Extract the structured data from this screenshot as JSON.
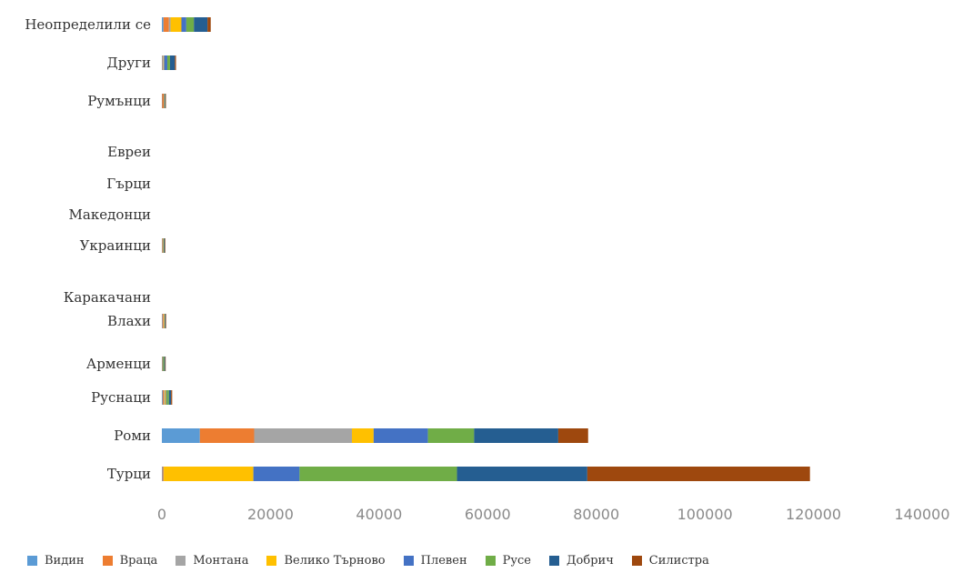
{
  "chart_data": {
    "type": "bar",
    "orientation": "horizontal",
    "stacked": true,
    "title": "",
    "xlabel": "",
    "ylabel": "",
    "xlim": [
      0,
      140000
    ],
    "x_ticks": [
      0,
      20000,
      40000,
      60000,
      80000,
      100000,
      120000,
      140000
    ],
    "grid": false,
    "legend_position": "bottom",
    "categories": [
      "Неопределили се",
      "Други",
      "Румънци",
      "Евреи",
      "Гърци",
      "Македонци",
      "Украинци",
      "Каракачани",
      "Влахи",
      "Арменци",
      "Руснаци",
      "Роми",
      "Турци"
    ],
    "series": [
      {
        "name": "Видин",
        "color": "#5b9bd5",
        "values": [
          300,
          100,
          50,
          0,
          0,
          0,
          50,
          0,
          100,
          50,
          150,
          7000,
          100
        ]
      },
      {
        "name": "Враца",
        "color": "#ed7d31",
        "values": [
          1000,
          100,
          300,
          0,
          0,
          0,
          100,
          0,
          200,
          50,
          200,
          10000,
          150
        ]
      },
      {
        "name": "Монтана",
        "color": "#a5a5a5",
        "values": [
          300,
          100,
          50,
          0,
          0,
          0,
          50,
          0,
          100,
          50,
          200,
          18000,
          100
        ]
      },
      {
        "name": "Велико Търново",
        "color": "#ffc000",
        "values": [
          2000,
          100,
          50,
          0,
          0,
          0,
          100,
          0,
          100,
          50,
          200,
          4000,
          16500
        ]
      },
      {
        "name": "Плевен",
        "color": "#4472c4",
        "values": [
          900,
          600,
          50,
          0,
          0,
          0,
          50,
          0,
          50,
          50,
          150,
          10000,
          8500
        ]
      },
      {
        "name": "Русе",
        "color": "#70ad47",
        "values": [
          1400,
          500,
          50,
          0,
          0,
          0,
          50,
          0,
          50,
          200,
          400,
          8500,
          29000
        ]
      },
      {
        "name": "Добрич",
        "color": "#255e91",
        "values": [
          2500,
          900,
          100,
          0,
          0,
          0,
          150,
          0,
          100,
          150,
          400,
          15500,
          24000
        ]
      },
      {
        "name": "Силистра",
        "color": "#9e480e",
        "values": [
          600,
          200,
          100,
          0,
          0,
          0,
          100,
          0,
          100,
          100,
          200,
          5500,
          41000
        ]
      }
    ]
  }
}
